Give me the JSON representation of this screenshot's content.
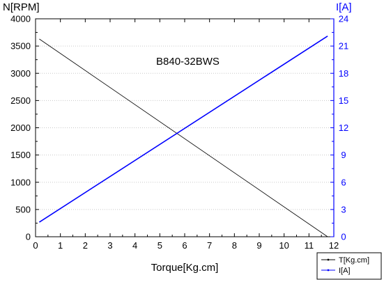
{
  "chart_data": {
    "type": "line",
    "annotation": "B840-32BWS",
    "xlabel": "Torque[Kg.cm]",
    "ylabel_left": "N[RPM]",
    "ylabel_right": "I[A]",
    "xlim": [
      0,
      12
    ],
    "ylim_left": [
      0,
      4000
    ],
    "ylim_right": [
      0,
      24
    ],
    "x_ticks": [
      "0",
      "1",
      "2",
      "3",
      "4",
      "5",
      "6",
      "7",
      "8",
      "9",
      "10",
      "11",
      "12"
    ],
    "y_left_ticks": [
      "0",
      "500",
      "1000",
      "1500",
      "2000",
      "2500",
      "3000",
      "3500",
      "4000"
    ],
    "y_right_ticks": [
      "0",
      "3",
      "6",
      "9",
      "12",
      "15",
      "18",
      "21",
      "24"
    ],
    "grid": true,
    "legend_position": "bottom-right",
    "series": [
      {
        "name": "T[Kg.cm]",
        "axis": "left",
        "color": "#000000",
        "x": [
          0.15,
          11.75
        ],
        "values": [
          3630,
          0
        ]
      },
      {
        "name": "I[A]",
        "axis": "right",
        "color": "#0000ff",
        "x": [
          0.15,
          11.75
        ],
        "values": [
          1.6,
          22.1
        ]
      }
    ],
    "right_axis_color": "#0000ff"
  }
}
